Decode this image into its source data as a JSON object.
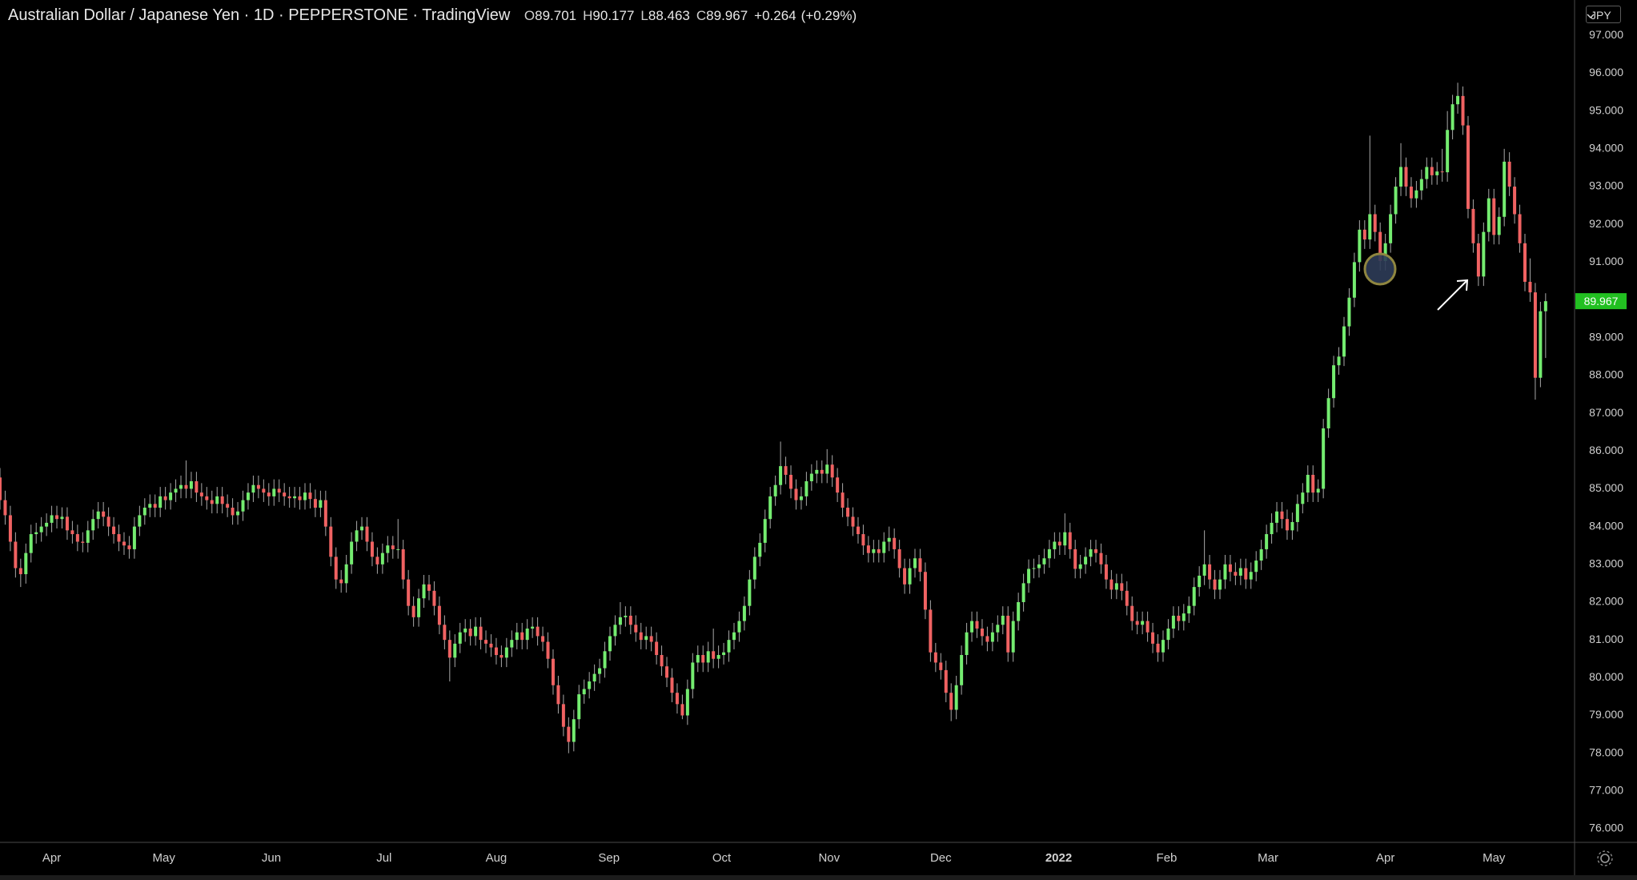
{
  "chart_data": {
    "type": "candlestick",
    "title": "Australian Dollar / Japanese Yen · 1D · PEPPERSTONE · TradingView",
    "ohlc_keys": [
      "O",
      "H",
      "L",
      "C"
    ],
    "change": "+0.264",
    "change_pct": "(+0.29%)",
    "currency": "JPY",
    "up_color": "#74ec70",
    "down_color": "#f06262",
    "wick_color": "#a8a8a8",
    "ylim": [
      75.64,
      97.94
    ],
    "yticks": [
      {
        "value": 76,
        "label": "76.000"
      },
      {
        "value": 77,
        "label": "77.000"
      },
      {
        "value": 78,
        "label": "78.000"
      },
      {
        "value": 79,
        "label": "79.000"
      },
      {
        "value": 80,
        "label": "80.000"
      },
      {
        "value": 81,
        "label": "81.000"
      },
      {
        "value": 82,
        "label": "82.000"
      },
      {
        "value": 83,
        "label": "83.000"
      },
      {
        "value": 84,
        "label": "84.000"
      },
      {
        "value": 85,
        "label": "85.000"
      },
      {
        "value": 86,
        "label": "86.000"
      },
      {
        "value": 87,
        "label": "87.000"
      },
      {
        "value": 88,
        "label": "88.000"
      },
      {
        "value": 89,
        "label": "89.000"
      },
      {
        "value": 90,
        "label": "90.000"
      },
      {
        "value": 91,
        "label": "91.000"
      },
      {
        "value": 92,
        "label": "92.000"
      },
      {
        "value": 93,
        "label": "93.000"
      },
      {
        "value": 94,
        "label": "94.000"
      },
      {
        "value": 95,
        "label": "95.000"
      },
      {
        "value": 96,
        "label": "96.000"
      },
      {
        "value": 97,
        "label": "97.000"
      }
    ],
    "xlim": [
      0,
      304.6
    ],
    "xticks": [
      {
        "value": 10,
        "label": "Apr"
      },
      {
        "value": 31.7,
        "label": "May"
      },
      {
        "value": 52.5,
        "label": "Jun"
      },
      {
        "value": 74.3,
        "label": "Jul"
      },
      {
        "value": 96,
        "label": "Aug"
      },
      {
        "value": 117.8,
        "label": "Sep"
      },
      {
        "value": 139.6,
        "label": "Oct"
      },
      {
        "value": 160.4,
        "label": "Nov"
      },
      {
        "value": 182,
        "label": "Dec"
      },
      {
        "value": 204.8,
        "label": "2022"
      },
      {
        "value": 225.7,
        "label": "Feb"
      },
      {
        "value": 245.3,
        "label": "Mar"
      },
      {
        "value": 268,
        "label": "Apr"
      },
      {
        "value": 289,
        "label": "May"
      }
    ],
    "open": [
      85.3,
      84.7,
      84.3,
      83.6,
      82.9,
      82.74,
      83.3,
      83.8,
      83.85,
      84.0,
      84.1,
      84.3,
      84.2,
      84.26,
      83.9,
      83.8,
      83.6,
      83.57,
      83.9,
      84.2,
      84.4,
      84.26,
      84.0,
      83.8,
      83.6,
      83.5,
      83.4,
      84.0,
      84.3,
      84.5,
      84.6,
      84.5,
      84.8,
      84.7,
      84.9,
      85.0,
      85.1,
      85.0,
      85.2,
      84.9,
      84.8,
      84.7,
      84.6,
      84.8,
      84.6,
      84.5,
      84.3,
      84.4,
      84.7,
      84.9,
      85.1,
      85.0,
      84.9,
      84.8,
      85.0,
      84.9,
      84.8,
      84.75,
      84.8,
      84.7,
      84.9,
      84.73,
      84.5,
      84.7,
      84.0,
      83.2,
      82.6,
      82.5,
      83.0,
      83.6,
      83.9,
      84.0,
      83.6,
      83.2,
      83.0,
      83.3,
      83.5,
      83.4,
      83.4,
      82.6,
      81.9,
      81.6,
      82.1,
      82.47,
      82.3,
      81.9,
      81.4,
      81.0,
      80.53,
      80.9,
      81.2,
      81.3,
      81.1,
      81.35,
      81.0,
      80.9,
      80.8,
      80.6,
      80.53,
      80.8,
      81.0,
      81.2,
      81.0,
      81.3,
      81.35,
      81.1,
      80.95,
      80.5,
      79.8,
      79.3,
      78.7,
      78.3,
      78.9,
      79.56,
      79.7,
      79.9,
      80.1,
      80.25,
      80.7,
      81.1,
      81.4,
      81.6,
      81.64,
      81.4,
      81.2,
      81.0,
      81.1,
      80.95,
      80.6,
      80.3,
      80.0,
      79.6,
      79.3,
      79.0,
      79.7,
      80.4,
      80.6,
      80.4,
      80.7,
      80.5,
      80.6,
      80.67,
      81.0,
      81.2,
      81.5,
      81.9,
      82.6,
      83.2,
      83.57,
      84.2,
      84.8,
      85.1,
      85.6,
      85.37,
      85.0,
      84.7,
      84.8,
      85.2,
      85.4,
      85.5,
      85.4,
      85.64,
      85.3,
      84.9,
      84.5,
      84.26,
      84.0,
      83.8,
      83.5,
      83.3,
      83.4,
      83.3,
      83.6,
      83.7,
      83.4,
      82.9,
      82.47,
      82.9,
      83.16,
      82.8,
      81.8,
      80.67,
      80.4,
      80.2,
      79.6,
      79.15,
      79.8,
      80.6,
      81.2,
      81.5,
      81.3,
      81.1,
      80.95,
      81.2,
      81.4,
      81.64,
      80.67,
      81.5,
      82.0,
      82.5,
      82.88,
      82.9,
      83.0,
      83.16,
      83.4,
      83.6,
      83.5,
      83.85,
      83.4,
      82.88,
      83.0,
      83.2,
      83.4,
      83.3,
      83.0,
      82.6,
      82.33,
      82.5,
      82.3,
      81.9,
      81.5,
      81.4,
      81.5,
      81.2,
      80.9,
      80.67,
      81.0,
      81.3,
      81.64,
      81.5,
      81.7,
      81.9,
      82.4,
      82.7,
      83.0,
      82.6,
      82.33,
      82.6,
      83.0,
      82.8,
      82.7,
      82.9,
      82.6,
      82.8,
      83.1,
      83.4,
      83.8,
      84.1,
      84.4,
      84.2,
      83.9,
      84.12,
      84.6,
      84.9,
      85.37,
      84.9,
      85.0,
      86.6,
      87.4,
      88.27,
      88.5,
      89.3,
      90.06,
      91.0,
      91.86,
      91.6,
      92.27,
      91.8,
      91.03,
      91.5,
      92.27,
      93.0,
      93.52,
      93.0,
      92.69,
      92.9,
      93.2,
      93.52,
      93.3,
      93.4,
      93.38,
      94.5,
      95.18,
      95.4,
      94.62,
      92.41,
      91.5,
      90.62,
      91.8,
      92.69,
      91.72,
      92.2,
      93.66,
      93.0,
      92.27,
      91.5,
      90.48,
      90.2,
      87.94,
      89.701
    ],
    "high": [
      85.55,
      84.95,
      84.55,
      83.85,
      83.15,
      83.55,
      84.05,
      84.1,
      84.25,
      84.35,
      84.55,
      84.55,
      84.51,
      84.51,
      84.15,
      84.05,
      83.85,
      84.15,
      84.45,
      84.65,
      84.65,
      84.51,
      84.25,
      84.05,
      83.85,
      83.75,
      84.25,
      84.55,
      84.75,
      84.85,
      84.85,
      85.05,
      85.05,
      85.15,
      85.25,
      85.35,
      85.75,
      85.45,
      85.45,
      85.15,
      85.05,
      84.95,
      85.05,
      85.05,
      84.85,
      84.75,
      84.65,
      84.95,
      85.15,
      85.35,
      85.35,
      85.25,
      85.15,
      85.25,
      85.25,
      85.15,
      85.05,
      85.05,
      85.05,
      85.15,
      85.15,
      84.98,
      84.95,
      84.95,
      84.25,
      83.45,
      82.85,
      83.25,
      83.85,
      84.15,
      84.25,
      84.25,
      83.85,
      83.45,
      83.55,
      83.75,
      83.75,
      84.2,
      83.65,
      82.85,
      82.15,
      82.35,
      82.72,
      82.72,
      82.55,
      82.15,
      81.65,
      81.25,
      81.15,
      81.45,
      81.55,
      81.55,
      81.6,
      81.6,
      81.25,
      81.15,
      81.05,
      80.85,
      81.05,
      81.25,
      81.45,
      81.45,
      81.55,
      81.6,
      81.6,
      81.35,
      81.2,
      80.75,
      80.05,
      79.55,
      78.95,
      79.15,
      79.81,
      79.95,
      80.15,
      80.35,
      80.5,
      80.95,
      81.35,
      81.65,
      82.0,
      81.89,
      81.89,
      81.65,
      81.45,
      81.35,
      81.35,
      81.2,
      80.85,
      80.55,
      80.25,
      79.85,
      79.55,
      79.95,
      80.65,
      80.85,
      80.85,
      80.95,
      81.3,
      80.85,
      80.92,
      81.25,
      81.45,
      81.75,
      82.15,
      82.85,
      83.45,
      83.82,
      84.45,
      85.05,
      85.35,
      86.25,
      85.85,
      85.62,
      85.25,
      85.05,
      85.45,
      85.65,
      85.75,
      85.75,
      86.05,
      85.89,
      85.55,
      85.15,
      84.75,
      84.51,
      84.25,
      84.05,
      83.75,
      83.65,
      83.65,
      83.85,
      84.0,
      83.95,
      83.65,
      83.15,
      83.15,
      83.41,
      83.41,
      83.05,
      82.05,
      80.92,
      80.65,
      80.45,
      79.85,
      80.05,
      80.85,
      81.45,
      81.75,
      81.75,
      81.55,
      81.35,
      81.45,
      81.65,
      81.89,
      81.89,
      81.75,
      82.25,
      82.75,
      83.13,
      83.15,
      83.25,
      83.41,
      83.65,
      83.85,
      83.85,
      84.35,
      84.1,
      83.65,
      83.25,
      83.45,
      83.65,
      83.65,
      83.55,
      83.25,
      82.85,
      82.75,
      82.75,
      82.55,
      82.15,
      81.75,
      81.75,
      81.75,
      81.45,
      81.15,
      81.25,
      81.55,
      81.89,
      81.89,
      81.95,
      82.15,
      82.65,
      82.95,
      83.9,
      83.25,
      82.85,
      82.85,
      83.25,
      83.25,
      83.05,
      83.15,
      83.15,
      83.05,
      83.35,
      83.65,
      84.05,
      84.35,
      84.65,
      84.65,
      84.45,
      84.37,
      84.85,
      85.15,
      85.62,
      85.62,
      85.25,
      86.85,
      87.65,
      88.52,
      88.75,
      89.55,
      90.31,
      91.25,
      92.11,
      92.11,
      94.35,
      92.52,
      92.05,
      91.75,
      92.52,
      93.25,
      94.15,
      93.77,
      93.25,
      93.15,
      93.45,
      93.77,
      93.77,
      93.65,
      94.0,
      95.0,
      95.43,
      95.75,
      95.65,
      94.87,
      92.66,
      91.75,
      92.05,
      92.94,
      92.94,
      92.45,
      94.0,
      93.91,
      93.25,
      92.52,
      91.75,
      91.1,
      90.45,
      89.95,
      90.177
    ],
    "low": [
      84.45,
      84.05,
      83.35,
      82.65,
      82.4,
      82.49,
      83.05,
      83.55,
      83.6,
      83.75,
      83.85,
      83.95,
      83.95,
      83.65,
      83.55,
      83.35,
      83.32,
      83.32,
      83.65,
      83.95,
      84.01,
      83.75,
      83.55,
      83.35,
      83.25,
      83.15,
      83.15,
      83.75,
      84.05,
      84.25,
      84.25,
      84.25,
      84.45,
      84.45,
      84.65,
      84.75,
      84.75,
      84.75,
      84.65,
      84.55,
      84.45,
      84.35,
      84.35,
      84.35,
      84.25,
      84.05,
      84.05,
      84.15,
      84.45,
      84.65,
      84.75,
      84.65,
      84.55,
      84.55,
      84.65,
      84.55,
      84.5,
      84.5,
      84.45,
      84.45,
      84.48,
      84.25,
      84.25,
      83.75,
      82.95,
      82.35,
      82.25,
      82.25,
      82.75,
      83.35,
      83.65,
      83.35,
      82.95,
      82.75,
      82.75,
      83.05,
      83.15,
      83.15,
      82.35,
      81.65,
      81.35,
      81.35,
      81.85,
      82.05,
      81.65,
      81.15,
      80.75,
      79.9,
      80.28,
      80.65,
      80.95,
      80.85,
      80.85,
      80.75,
      80.65,
      80.55,
      80.35,
      80.28,
      80.28,
      80.55,
      80.75,
      80.75,
      80.75,
      81.05,
      80.85,
      80.7,
      80.25,
      79.55,
      79.05,
      78.45,
      78.0,
      78.05,
      78.65,
      79.31,
      79.45,
      79.65,
      79.85,
      80.0,
      80.45,
      80.85,
      81.15,
      81.35,
      81.15,
      80.95,
      80.75,
      80.75,
      80.7,
      80.35,
      80.05,
      79.75,
      79.35,
      79.05,
      78.9,
      78.75,
      79.45,
      80.15,
      80.15,
      80.15,
      80.25,
      80.25,
      80.35,
      80.42,
      80.75,
      80.95,
      81.25,
      81.65,
      82.35,
      82.95,
      83.32,
      83.95,
      84.55,
      84.85,
      85.12,
      84.75,
      84.45,
      84.45,
      84.55,
      84.95,
      85.15,
      85.15,
      85.15,
      85.05,
      84.65,
      84.25,
      84.01,
      83.75,
      83.55,
      83.25,
      83.05,
      83.05,
      83.05,
      83.05,
      83.35,
      83.15,
      82.65,
      82.22,
      82.22,
      82.65,
      82.55,
      81.55,
      80.42,
      80.15,
      79.95,
      79.35,
      78.85,
      78.9,
      79.55,
      80.35,
      80.95,
      81.05,
      80.85,
      80.7,
      80.7,
      80.95,
      81.15,
      80.42,
      80.42,
      81.25,
      81.75,
      82.25,
      82.63,
      82.65,
      82.75,
      82.91,
      83.15,
      83.25,
      83.25,
      83.15,
      82.63,
      82.63,
      82.75,
      82.95,
      83.05,
      82.75,
      82.35,
      82.08,
      82.08,
      82.05,
      81.65,
      81.25,
      81.15,
      81.15,
      80.95,
      80.65,
      80.42,
      80.42,
      80.75,
      81.05,
      81.25,
      81.25,
      81.45,
      81.65,
      82.15,
      82.45,
      82.35,
      82.08,
      82.08,
      82.35,
      82.55,
      82.45,
      82.45,
      82.35,
      82.35,
      82.55,
      82.85,
      83.15,
      83.55,
      83.85,
      83.95,
      83.65,
      83.65,
      83.87,
      84.35,
      84.65,
      84.65,
      84.65,
      84.75,
      86.35,
      87.15,
      88.02,
      88.25,
      89.05,
      89.81,
      90.75,
      91.35,
      91.35,
      91.55,
      90.78,
      90.78,
      91.25,
      92.02,
      92.75,
      92.75,
      92.44,
      92.44,
      92.65,
      92.95,
      93.05,
      93.05,
      93.13,
      93.13,
      94.25,
      94.93,
      94.37,
      92.16,
      91.25,
      90.37,
      90.37,
      91.55,
      91.47,
      91.47,
      91.95,
      92.75,
      92.02,
      91.25,
      90.23,
      89.95,
      87.36,
      87.69,
      88.463
    ],
    "close": [
      84.7,
      84.3,
      83.6,
      82.9,
      82.74,
      83.3,
      83.8,
      83.85,
      84.0,
      84.1,
      84.3,
      84.2,
      84.26,
      83.9,
      83.8,
      83.6,
      83.57,
      83.9,
      84.2,
      84.4,
      84.26,
      84.0,
      83.8,
      83.6,
      83.5,
      83.4,
      84.0,
      84.3,
      84.5,
      84.6,
      84.5,
      84.8,
      84.7,
      84.9,
      85.0,
      85.1,
      85.0,
      85.2,
      84.9,
      84.8,
      84.7,
      84.6,
      84.8,
      84.6,
      84.5,
      84.3,
      84.4,
      84.7,
      84.9,
      85.1,
      85.0,
      84.9,
      84.8,
      85.0,
      84.9,
      84.8,
      84.75,
      84.8,
      84.7,
      84.9,
      84.73,
      84.5,
      84.7,
      84.0,
      83.2,
      82.6,
      82.5,
      83.0,
      83.6,
      83.9,
      84.0,
      83.6,
      83.2,
      83.0,
      83.3,
      83.5,
      83.4,
      83.4,
      82.6,
      81.9,
      81.6,
      82.1,
      82.47,
      82.3,
      81.9,
      81.4,
      81.0,
      80.53,
      80.9,
      81.2,
      81.3,
      81.1,
      81.35,
      81.0,
      80.9,
      80.8,
      80.6,
      80.53,
      80.8,
      81.0,
      81.2,
      81.0,
      81.3,
      81.35,
      81.1,
      80.95,
      80.5,
      79.8,
      79.3,
      78.7,
      78.3,
      78.9,
      79.56,
      79.7,
      79.9,
      80.1,
      80.25,
      80.7,
      81.1,
      81.4,
      81.6,
      81.64,
      81.4,
      81.2,
      81.0,
      81.1,
      80.95,
      80.6,
      80.3,
      80.0,
      79.6,
      79.3,
      79.0,
      79.7,
      80.4,
      80.6,
      80.4,
      80.7,
      80.5,
      80.6,
      80.67,
      81.0,
      81.2,
      81.5,
      81.9,
      82.6,
      83.2,
      83.57,
      84.2,
      84.8,
      85.1,
      85.6,
      85.37,
      85.0,
      84.7,
      84.8,
      85.2,
      85.4,
      85.5,
      85.4,
      85.64,
      85.3,
      84.9,
      84.5,
      84.26,
      84.0,
      83.8,
      83.5,
      83.3,
      83.4,
      83.3,
      83.6,
      83.7,
      83.4,
      82.9,
      82.47,
      82.9,
      83.16,
      82.8,
      81.8,
      80.67,
      80.4,
      80.2,
      79.6,
      79.15,
      79.8,
      80.6,
      81.2,
      81.5,
      81.3,
      81.1,
      80.95,
      81.2,
      81.4,
      81.64,
      80.67,
      81.5,
      82.0,
      82.5,
      82.88,
      82.9,
      83.0,
      83.16,
      83.4,
      83.6,
      83.5,
      83.85,
      83.4,
      82.88,
      83.0,
      83.2,
      83.4,
      83.3,
      83.0,
      82.6,
      82.33,
      82.5,
      82.3,
      81.9,
      81.5,
      81.4,
      81.5,
      81.2,
      80.9,
      80.67,
      81.0,
      81.3,
      81.64,
      81.5,
      81.7,
      81.9,
      82.4,
      82.7,
      83.0,
      82.6,
      82.33,
      82.6,
      83.0,
      82.8,
      82.7,
      82.9,
      82.6,
      82.8,
      83.1,
      83.4,
      83.8,
      84.1,
      84.4,
      84.2,
      83.9,
      84.12,
      84.6,
      84.9,
      85.37,
      84.9,
      85.0,
      86.6,
      87.4,
      88.27,
      88.5,
      89.3,
      90.06,
      91.0,
      91.86,
      91.6,
      92.27,
      91.8,
      91.03,
      91.5,
      92.27,
      93.0,
      93.52,
      93.0,
      92.69,
      92.9,
      93.2,
      93.52,
      93.3,
      93.4,
      93.38,
      94.5,
      95.18,
      95.4,
      94.62,
      92.41,
      91.5,
      90.62,
      91.8,
      92.69,
      91.72,
      92.2,
      93.66,
      93.0,
      92.27,
      91.5,
      90.48,
      90.2,
      87.94,
      89.7,
      89.967
    ]
  }
}
